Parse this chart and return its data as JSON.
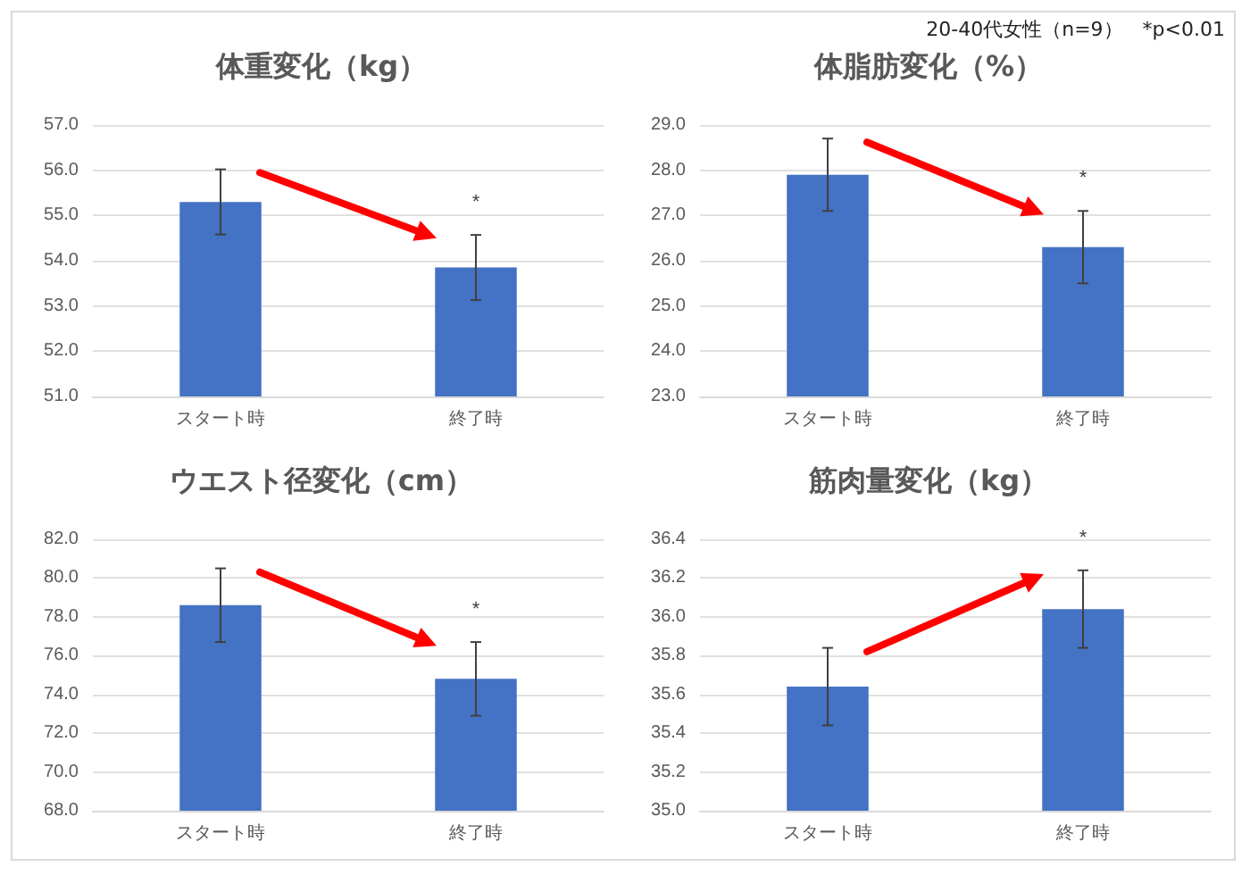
{
  "chart_data": [
    {
      "type": "bar",
      "title": "体重変化（kg）",
      "categories": [
        "スタート時",
        "終了時"
      ],
      "values": [
        55.3,
        53.85
      ],
      "errors": [
        0.72,
        0.72
      ],
      "color": "#4472c4",
      "ylim": [
        51,
        57
      ],
      "yticks": [
        {
          "value": 51,
          "label": "51.0"
        },
        {
          "value": 52,
          "label": "52.0"
        },
        {
          "value": 53,
          "label": "53.0"
        },
        {
          "value": 54,
          "label": "54.0"
        },
        {
          "value": 55,
          "label": "55.0"
        },
        {
          "value": 56,
          "label": "56.0"
        },
        {
          "value": 57,
          "label": "57.0"
        }
      ],
      "grid": "y",
      "annotations": [
        "20-40代女性（n=9）　*p<0.01",
        "*"
      ]
    },
    {
      "type": "bar",
      "title": "体脂肪変化（%）",
      "categories": [
        "スタート時",
        "終了時"
      ],
      "values": [
        27.9,
        26.3
      ],
      "errors": [
        0.8,
        0.8
      ],
      "color": "#4472c4",
      "ylim": [
        23,
        29
      ],
      "yticks": [
        {
          "value": 23,
          "label": "23.0"
        },
        {
          "value": 24,
          "label": "24.0"
        },
        {
          "value": 25,
          "label": "25.0"
        },
        {
          "value": 26,
          "label": "26.0"
        },
        {
          "value": 27,
          "label": "27.0"
        },
        {
          "value": 28,
          "label": "28.0"
        },
        {
          "value": 29,
          "label": "29.0"
        }
      ],
      "grid": "y",
      "annotations": [
        "*"
      ]
    },
    {
      "type": "bar",
      "title": "ウエスト径変化（cm）",
      "categories": [
        "スタート時",
        "終了時"
      ],
      "values": [
        78.6,
        74.8
      ],
      "errors": [
        1.9,
        1.9
      ],
      "color": "#4472c4",
      "ylim": [
        68,
        82
      ],
      "yticks": [
        {
          "value": 68,
          "label": "68.0"
        },
        {
          "value": 70,
          "label": "70.0"
        },
        {
          "value": 72,
          "label": "72.0"
        },
        {
          "value": 74,
          "label": "74.0"
        },
        {
          "value": 76,
          "label": "76.0"
        },
        {
          "value": 78,
          "label": "78.0"
        },
        {
          "value": 80,
          "label": "80.0"
        },
        {
          "value": 82,
          "label": "82.0"
        }
      ],
      "grid": "y",
      "annotations": [
        "*"
      ]
    },
    {
      "type": "bar",
      "title": "筋肉量変化（kg）",
      "categories": [
        "スタート時",
        "終了時"
      ],
      "values": [
        35.64,
        36.04
      ],
      "errors": [
        0.2,
        0.2
      ],
      "color": "#4472c4",
      "ylim": [
        35,
        36.4
      ],
      "yticks": [
        {
          "value": 35,
          "label": "35.0"
        },
        {
          "value": 35.2,
          "label": "35.2"
        },
        {
          "value": 35.4,
          "label": "35.4"
        },
        {
          "value": 35.6,
          "label": "35.6"
        },
        {
          "value": 35.8,
          "label": "35.8"
        },
        {
          "value": 36,
          "label": "36.0"
        },
        {
          "value": 36.2,
          "label": "36.2"
        },
        {
          "value": 36.4,
          "label": "36.4"
        }
      ],
      "grid": "y",
      "annotations": [
        "*"
      ]
    }
  ]
}
